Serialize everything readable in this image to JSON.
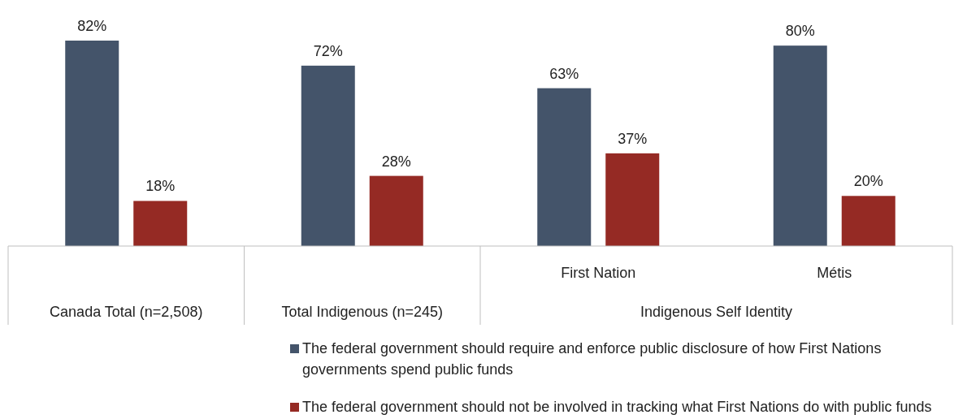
{
  "chart_data": {
    "type": "bar",
    "categories": [
      "Canada Total (n=2,508)",
      "Total Indigenous (n=245)",
      "First Nation",
      "Métis"
    ],
    "series": [
      {
        "name": "The federal government should require and enforce public disclosure of how First Nations governments spend public funds",
        "color": "#44546a",
        "values": [
          82,
          72,
          63,
          80
        ],
        "value_labels": [
          "82%",
          "72%",
          "63%",
          "80%"
        ]
      },
      {
        "name": "The federal government should not be involved in tracking what First Nations do with public funds",
        "color": "#952a24",
        "values": [
          18,
          28,
          37,
          20
        ],
        "value_labels": [
          "18%",
          "28%",
          "37%",
          "20%"
        ]
      }
    ],
    "annotations": [
      "Indigenous Self Identity"
    ],
    "legend": "bottom"
  }
}
